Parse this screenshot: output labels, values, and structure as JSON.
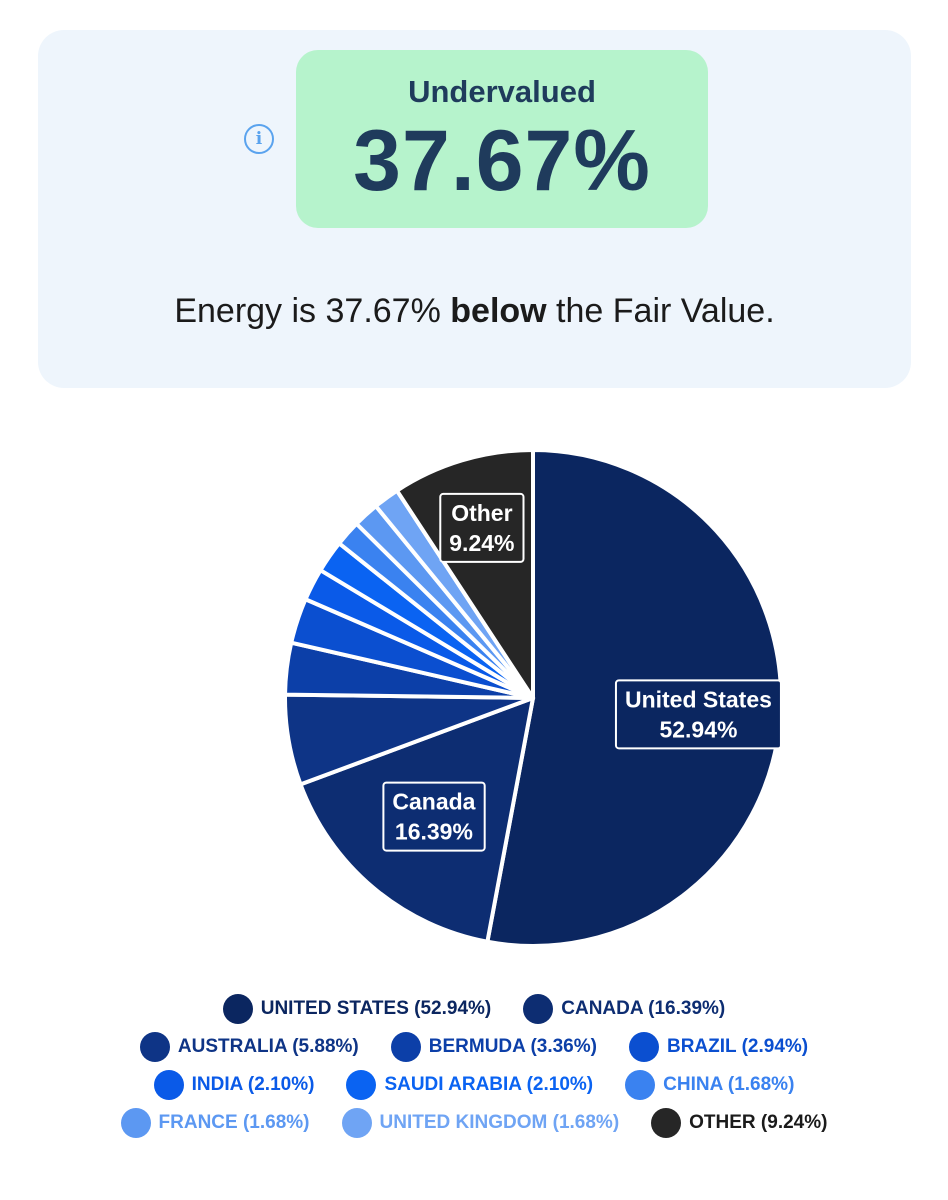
{
  "valuation": {
    "status": "Undervalued",
    "percent": "37.67%",
    "summary_prefix": "Energy is 37.67% ",
    "summary_emphasis": "below",
    "summary_suffix": " the Fair Value.",
    "info_icon": "info-icon",
    "colors": {
      "card": "#eef5fc",
      "badge": "#b6f3cc",
      "badge_text": "#1f3b5c"
    }
  },
  "chart_data": {
    "type": "pie",
    "slices": [
      {
        "label": "United States",
        "value": 52.94,
        "legend": "UNITED STATES (52.94%)",
        "callout_value": "52.94%",
        "color": "#0b2660",
        "legend_text_color": "#0b2660"
      },
      {
        "label": "Canada",
        "value": 16.39,
        "legend": "CANADA (16.39%)",
        "callout_value": "16.39%",
        "color": "#0d2d72",
        "legend_text_color": "#0d2d72"
      },
      {
        "label": "Australia",
        "value": 5.88,
        "legend": "AUSTRALIA (5.88%)",
        "color": "#0e3486",
        "legend_text_color": "#0e3486"
      },
      {
        "label": "Bermuda",
        "value": 3.36,
        "legend": "BERMUDA (3.36%)",
        "color": "#0c3fa8",
        "legend_text_color": "#0c3fa8"
      },
      {
        "label": "Brazil",
        "value": 2.94,
        "legend": "BRAZIL (2.94%)",
        "color": "#0b4fd0",
        "legend_text_color": "#0b4fd0"
      },
      {
        "label": "India",
        "value": 2.1,
        "legend": "INDIA (2.10%)",
        "color": "#0a5ae8",
        "legend_text_color": "#0a5ae8"
      },
      {
        "label": "Saudi Arabia",
        "value": 2.1,
        "legend": "SAUDI ARABIA (2.10%)",
        "color": "#0a63f2",
        "legend_text_color": "#0a63f2"
      },
      {
        "label": "China",
        "value": 1.68,
        "legend": "CHINA (1.68%)",
        "color": "#3a82f0",
        "legend_text_color": "#3a82f0"
      },
      {
        "label": "France",
        "value": 1.68,
        "legend": "FRANCE (1.68%)",
        "color": "#5c98f2",
        "legend_text_color": "#5c98f2"
      },
      {
        "label": "United Kingdom",
        "value": 1.68,
        "legend": "UNITED KINGDOM (1.68%)",
        "color": "#6fa4f4",
        "legend_text_color": "#6fa4f4"
      },
      {
        "label": "Other",
        "value": 9.24,
        "legend": "OTHER (9.24%)",
        "callout_value": "9.24%",
        "color": "#262626",
        "legend_text_color": "#1b1b1b"
      }
    ],
    "legend_rows": [
      [
        0,
        1
      ],
      [
        2,
        3,
        4
      ],
      [
        5,
        6,
        7
      ],
      [
        8,
        9,
        10
      ]
    ],
    "callouts": [
      0,
      1,
      10
    ]
  }
}
